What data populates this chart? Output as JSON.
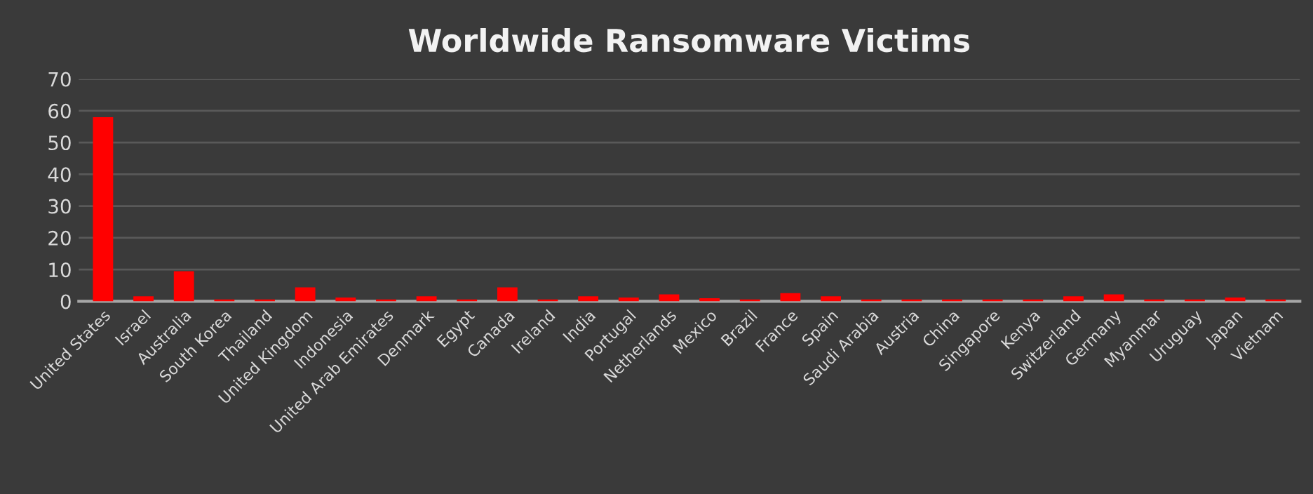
{
  "chart_data": {
    "type": "bar",
    "title": "Worldwide Ransomware Victims",
    "categories": [
      "United States",
      "Israel",
      "Australia",
      "South Korea",
      "Thailand",
      "United Kingdom",
      "Indonesia",
      "United Arab Emirates",
      "Denmark",
      "Egypt",
      "Canada",
      "Ireland",
      "India",
      "Portugal",
      "Netherlands",
      "Mexico",
      "Brazil",
      "France",
      "Spain",
      "Saudi Arabia",
      "Austria",
      "China",
      "Singapore",
      "Kenya",
      "Switzerland",
      "Germany",
      "Myanmar",
      "Uruguay",
      "Japan",
      "Vietnam"
    ],
    "values": [
      58,
      1.6,
      9.5,
      0.6,
      0.6,
      4.4,
      1.2,
      0.6,
      1.6,
      0.6,
      4.4,
      0.6,
      1.6,
      1.2,
      2.2,
      1.0,
      0.6,
      2.6,
      1.6,
      0.6,
      0.6,
      0.6,
      0.6,
      0.6,
      1.6,
      2.2,
      0.6,
      0.6,
      1.2,
      0.6
    ],
    "color": "#ff0000",
    "ylim": [
      0,
      70
    ],
    "yticks": [
      0,
      10,
      20,
      30,
      40,
      50,
      60,
      70
    ],
    "grid": "y"
  }
}
